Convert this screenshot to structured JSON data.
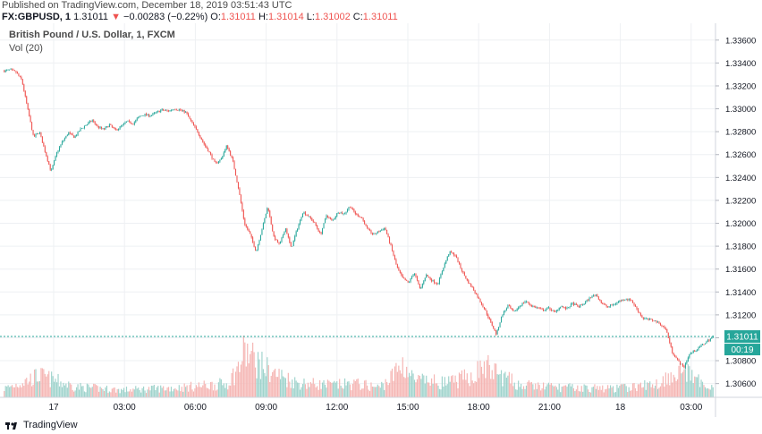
{
  "header": {
    "published": "Published on TradingView.com, December 18, 2019 03:51:43 UTC",
    "symbol": "FX:GBPUSD, 1",
    "last": "1.31011",
    "arrow": "▼",
    "change": "−0.00283 (−0.22%)",
    "o_label": "O:",
    "o": "1.31011",
    "h_label": "H:",
    "h": "1.31014",
    "l_label": "L:",
    "l": "1.31002",
    "c_label": "C:",
    "c": "1.31011"
  },
  "footer": {
    "brand": "TradingView"
  },
  "colors": {
    "up": "#26a69a",
    "down": "#ef5350",
    "vol_up": "#9fd3cc",
    "vol_down": "#f5b5b3",
    "grid": "#eef0f3",
    "price_line": "#26a69a"
  },
  "chart_data": {
    "type": "candlestick",
    "title": "British Pound / U.S. Dollar, 1, FXCM",
    "volume_label": "Vol (20)",
    "y_ticks": [
      "1.33600",
      "1.33400",
      "1.33200",
      "1.33000",
      "1.32800",
      "1.32600",
      "1.32400",
      "1.32200",
      "1.32000",
      "1.31800",
      "1.31600",
      "1.31400",
      "1.31200",
      "1.31000",
      "1.30800",
      "1.30600"
    ],
    "ylim": [
      1.3048,
      1.337
    ],
    "x_ticks": [
      "17",
      "03:00",
      "06:00",
      "09:00",
      "12:00",
      "15:00",
      "18:00",
      "21:00",
      "18",
      "03:00"
    ],
    "last_price_label": "1.31011",
    "countdown_label": "00:19",
    "last_price": 1.31011,
    "price_path": [
      [
        0,
        1.3333
      ],
      [
        1,
        1.3334
      ],
      [
        2,
        1.3332
      ],
      [
        3,
        1.3325
      ],
      [
        4,
        1.33
      ],
      [
        5,
        1.3275
      ],
      [
        6,
        1.328
      ],
      [
        7,
        1.3262
      ],
      [
        8,
        1.3245
      ],
      [
        9,
        1.3262
      ],
      [
        10,
        1.3272
      ],
      [
        11,
        1.3279
      ],
      [
        12,
        1.3275
      ],
      [
        13,
        1.3282
      ],
      [
        14,
        1.3286
      ],
      [
        15,
        1.329
      ],
      [
        16,
        1.3284
      ],
      [
        17,
        1.3282
      ],
      [
        18,
        1.3286
      ],
      [
        19,
        1.3281
      ],
      [
        20,
        1.3285
      ],
      [
        21,
        1.3289
      ],
      [
        22,
        1.3287
      ],
      [
        23,
        1.3293
      ],
      [
        24,
        1.3295
      ],
      [
        25,
        1.3294
      ],
      [
        26,
        1.3297
      ],
      [
        27,
        1.3299
      ],
      [
        28,
        1.3298
      ],
      [
        29,
        1.33
      ],
      [
        30,
        1.3299
      ],
      [
        31,
        1.3297
      ],
      [
        32,
        1.3288
      ],
      [
        33,
        1.328
      ],
      [
        34,
        1.327
      ],
      [
        35,
        1.3262
      ],
      [
        36,
        1.3252
      ],
      [
        37,
        1.3256
      ],
      [
        38,
        1.3268
      ],
      [
        39,
        1.3255
      ],
      [
        40,
        1.323
      ],
      [
        41,
        1.32
      ],
      [
        42,
        1.319
      ],
      [
        43,
        1.3175
      ],
      [
        44,
        1.3195
      ],
      [
        45,
        1.3215
      ],
      [
        46,
        1.3188
      ],
      [
        47,
        1.3181
      ],
      [
        48,
        1.3196
      ],
      [
        49,
        1.3178
      ],
      [
        50,
        1.3195
      ],
      [
        51,
        1.321
      ],
      [
        52,
        1.3206
      ],
      [
        53,
        1.32
      ],
      [
        54,
        1.319
      ],
      [
        55,
        1.3207
      ],
      [
        56,
        1.3202
      ],
      [
        57,
        1.321
      ],
      [
        58,
        1.3208
      ],
      [
        59,
        1.3215
      ],
      [
        60,
        1.3208
      ],
      [
        61,
        1.3205
      ],
      [
        62,
        1.3195
      ],
      [
        63,
        1.319
      ],
      [
        64,
        1.3193
      ],
      [
        65,
        1.3196
      ],
      [
        66,
        1.318
      ],
      [
        67,
        1.3162
      ],
      [
        68,
        1.3152
      ],
      [
        69,
        1.3148
      ],
      [
        70,
        1.3157
      ],
      [
        71,
        1.3142
      ],
      [
        72,
        1.3155
      ],
      [
        73,
        1.315
      ],
      [
        74,
        1.3147
      ],
      [
        75,
        1.3162
      ],
      [
        76,
        1.3175
      ],
      [
        77,
        1.3172
      ],
      [
        78,
        1.316
      ],
      [
        79,
        1.315
      ],
      [
        80,
        1.3143
      ],
      [
        81,
        1.3134
      ],
      [
        82,
        1.3125
      ],
      [
        83,
        1.3114
      ],
      [
        84,
        1.3103
      ],
      [
        85,
        1.312
      ],
      [
        86,
        1.3128
      ],
      [
        87,
        1.3122
      ],
      [
        88,
        1.3128
      ],
      [
        89,
        1.3132
      ],
      [
        90,
        1.3128
      ],
      [
        91,
        1.3126
      ],
      [
        92,
        1.3124
      ],
      [
        93,
        1.3126
      ],
      [
        94,
        1.3122
      ],
      [
        95,
        1.3128
      ],
      [
        96,
        1.3125
      ],
      [
        97,
        1.313
      ],
      [
        98,
        1.3127
      ],
      [
        99,
        1.313
      ],
      [
        100,
        1.3135
      ],
      [
        101,
        1.3138
      ],
      [
        102,
        1.313
      ],
      [
        103,
        1.3127
      ],
      [
        104,
        1.3129
      ],
      [
        105,
        1.3132
      ],
      [
        106,
        1.3134
      ],
      [
        107,
        1.3133
      ],
      [
        108,
        1.3125
      ],
      [
        109,
        1.3117
      ],
      [
        110,
        1.3116
      ],
      [
        111,
        1.3115
      ],
      [
        112,
        1.3112
      ],
      [
        113,
        1.3107
      ],
      [
        114,
        1.3088
      ],
      [
        115,
        1.308
      ],
      [
        116,
        1.3074
      ],
      [
        117,
        1.3086
      ],
      [
        118,
        1.3089
      ],
      [
        119,
        1.3093
      ],
      [
        120,
        1.3097
      ],
      [
        121,
        1.3101
      ]
    ],
    "volume_envelope": [
      [
        0,
        0.18
      ],
      [
        4,
        0.35
      ],
      [
        6,
        0.45
      ],
      [
        12,
        0.22
      ],
      [
        20,
        0.15
      ],
      [
        30,
        0.2
      ],
      [
        38,
        0.28
      ],
      [
        40,
        0.6
      ],
      [
        41,
        0.95
      ],
      [
        42,
        0.85
      ],
      [
        44,
        0.65
      ],
      [
        46,
        0.5
      ],
      [
        50,
        0.3
      ],
      [
        56,
        0.25
      ],
      [
        60,
        0.28
      ],
      [
        64,
        0.2
      ],
      [
        66,
        0.4
      ],
      [
        68,
        0.7
      ],
      [
        70,
        0.35
      ],
      [
        76,
        0.3
      ],
      [
        80,
        0.45
      ],
      [
        82,
        0.65
      ],
      [
        84,
        0.5
      ],
      [
        88,
        0.25
      ],
      [
        96,
        0.2
      ],
      [
        104,
        0.18
      ],
      [
        108,
        0.22
      ],
      [
        112,
        0.3
      ],
      [
        114,
        0.5
      ],
      [
        116,
        0.55
      ],
      [
        118,
        0.35
      ],
      [
        121,
        0.22
      ]
    ]
  }
}
